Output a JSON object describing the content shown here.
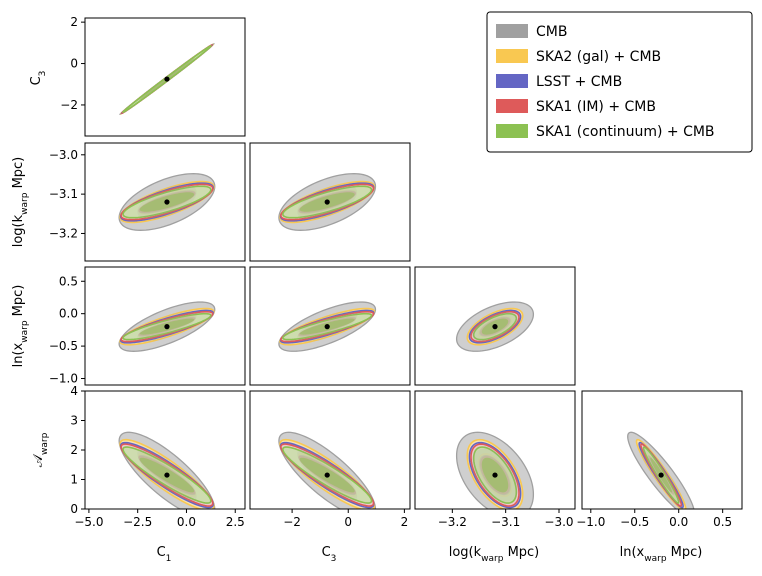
{
  "chart_data": {
    "type": "corner",
    "parameters": [
      "C_1",
      "C_3",
      "log(k_warp Mpc)",
      "ln(x_warp Mpc)",
      "A_warp"
    ],
    "param_labels": {
      "C1": "C₁",
      "C3": "C₃",
      "logk": "log(kwarp Mpc)",
      "lnx": "ln(xwarp Mpc)",
      "A": "𝒜warp"
    },
    "fiducial": {
      "C1": -1.0,
      "C3": -0.75,
      "logk": -3.12,
      "lnx": -0.2,
      "A": 1.15
    },
    "ticks": {
      "C1": [
        -5.0,
        -2.5,
        0.0,
        2.5
      ],
      "C1_labels": [
        "−5.0",
        "−2.5",
        "0.0",
        "2.5"
      ],
      "C3": [
        -2,
        0,
        2
      ],
      "C3_labels": [
        "−2",
        "0",
        "2"
      ],
      "logk": [
        -3.2,
        -3.1,
        -3.0
      ],
      "logk_labels": [
        "−3.2",
        "−3.1",
        "−3.0"
      ],
      "lnx": [
        -1.0,
        -0.5,
        0.0,
        0.5
      ],
      "lnx_labels": [
        "−1.0",
        "−0.5",
        "0.0",
        "0.5"
      ],
      "A": [
        0,
        1,
        2,
        3,
        4
      ],
      "A_labels": [
        "0",
        "1",
        "2",
        "3",
        "4"
      ]
    },
    "legend": [
      {
        "label": "CMB",
        "color": "#a0a0a0"
      },
      {
        "label": "SKA2 (gal) + CMB",
        "color": "#f9c851"
      },
      {
        "label": "LSST + CMB",
        "color": "#6466c4"
      },
      {
        "label": "SKA1 (IM) + CMB",
        "color": "#de5a5a"
      },
      {
        "label": "SKA1 (continuum) + CMB",
        "color": "#8cc152"
      }
    ],
    "legend_position": "top-right",
    "panels": [
      {
        "id": "C1-C3",
        "x": "C1",
        "y": "C3",
        "xlim": [
          -5.2,
          3.0
        ],
        "ylim": [
          -3.5,
          2.2
        ],
        "ellipses": [
          {
            "series": "CMB",
            "center": [
              -1.0,
              -0.75
            ],
            "sx": 2.4,
            "sy": 1.7,
            "rho": 0.999
          },
          {
            "series": "SKA2 (gal) + CMB",
            "center": [
              -1.0,
              -0.75
            ],
            "sx": 2.35,
            "sy": 1.67,
            "rho": 0.998
          },
          {
            "series": "LSST + CMB",
            "center": [
              -1.0,
              -0.75
            ],
            "sx": 2.32,
            "sy": 1.65,
            "rho": 0.998
          },
          {
            "series": "SKA1 (IM) + CMB",
            "center": [
              -1.0,
              -0.75
            ],
            "sx": 2.3,
            "sy": 1.64,
            "rho": 0.998
          },
          {
            "series": "SKA1 (continuum) + CMB",
            "center": [
              -1.0,
              -0.75
            ],
            "sx": 2.25,
            "sy": 1.6,
            "rho": 0.998
          }
        ]
      },
      {
        "id": "C1-logk",
        "x": "C1",
        "y": "logk",
        "xlim": [
          -5.2,
          3.0
        ],
        "ylim": [
          -3.27,
          -2.97
        ],
        "ellipses": [
          {
            "series": "CMB",
            "center": [
              -1.0,
              -3.12
            ],
            "sx": 2.45,
            "sy": 0.072,
            "rho": 0.55
          },
          {
            "series": "SKA2 (gal) + CMB",
            "center": [
              -1.0,
              -3.12
            ],
            "sx": 2.4,
            "sy": 0.052,
            "rho": 0.74
          },
          {
            "series": "LSST + CMB",
            "center": [
              -1.0,
              -3.12
            ],
            "sx": 2.37,
            "sy": 0.048,
            "rho": 0.76
          },
          {
            "series": "SKA1 (IM) + CMB",
            "center": [
              -1.0,
              -3.12
            ],
            "sx": 2.35,
            "sy": 0.045,
            "rho": 0.77
          },
          {
            "series": "SKA1 (continuum) + CMB",
            "center": [
              -1.0,
              -3.12
            ],
            "sx": 2.25,
            "sy": 0.04,
            "rho": 0.78
          }
        ]
      },
      {
        "id": "C3-logk",
        "x": "C3",
        "y": "logk",
        "xlim": [
          -3.5,
          2.2
        ],
        "ylim": [
          -3.27,
          -2.97
        ],
        "ellipses": [
          {
            "series": "CMB",
            "center": [
              -0.75,
              -3.12
            ],
            "sx": 1.72,
            "sy": 0.072,
            "rho": 0.55
          },
          {
            "series": "SKA2 (gal) + CMB",
            "center": [
              -0.75,
              -3.12
            ],
            "sx": 1.68,
            "sy": 0.052,
            "rho": 0.74
          },
          {
            "series": "LSST + CMB",
            "center": [
              -0.75,
              -3.12
            ],
            "sx": 1.66,
            "sy": 0.048,
            "rho": 0.76
          },
          {
            "series": "SKA1 (IM) + CMB",
            "center": [
              -0.75,
              -3.12
            ],
            "sx": 1.65,
            "sy": 0.045,
            "rho": 0.77
          },
          {
            "series": "SKA1 (continuum) + CMB",
            "center": [
              -0.75,
              -3.12
            ],
            "sx": 1.58,
            "sy": 0.04,
            "rho": 0.78
          }
        ]
      },
      {
        "id": "C1-lnx",
        "x": "C1",
        "y": "lnx",
        "xlim": [
          -5.2,
          3.0
        ],
        "ylim": [
          -1.1,
          0.72
        ],
        "ellipses": [
          {
            "series": "CMB",
            "center": [
              -1.0,
              -0.2
            ],
            "sx": 2.45,
            "sy": 0.38,
            "rho": 0.7
          },
          {
            "series": "SKA2 (gal) + CMB",
            "center": [
              -1.0,
              -0.2
            ],
            "sx": 2.4,
            "sy": 0.28,
            "rho": 0.82
          },
          {
            "series": "LSST + CMB",
            "center": [
              -1.0,
              -0.2
            ],
            "sx": 2.37,
            "sy": 0.25,
            "rho": 0.85
          },
          {
            "series": "SKA1 (IM) + CMB",
            "center": [
              -1.0,
              -0.2
            ],
            "sx": 2.35,
            "sy": 0.23,
            "rho": 0.86
          },
          {
            "series": "SKA1 (continuum) + CMB",
            "center": [
              -1.0,
              -0.2
            ],
            "sx": 2.25,
            "sy": 0.2,
            "rho": 0.87
          }
        ]
      },
      {
        "id": "C3-lnx",
        "x": "C3",
        "y": "lnx",
        "xlim": [
          -3.5,
          2.2
        ],
        "ylim": [
          -1.1,
          0.72
        ],
        "ellipses": [
          {
            "series": "CMB",
            "center": [
              -0.75,
              -0.2
            ],
            "sx": 1.72,
            "sy": 0.38,
            "rho": 0.7
          },
          {
            "series": "SKA2 (gal) + CMB",
            "center": [
              -0.75,
              -0.2
            ],
            "sx": 1.68,
            "sy": 0.28,
            "rho": 0.82
          },
          {
            "series": "LSST + CMB",
            "center": [
              -0.75,
              -0.2
            ],
            "sx": 1.66,
            "sy": 0.25,
            "rho": 0.85
          },
          {
            "series": "SKA1 (IM) + CMB",
            "center": [
              -0.75,
              -0.2
            ],
            "sx": 1.65,
            "sy": 0.23,
            "rho": 0.86
          },
          {
            "series": "SKA1 (continuum) + CMB",
            "center": [
              -0.75,
              -0.2
            ],
            "sx": 1.58,
            "sy": 0.2,
            "rho": 0.87
          }
        ]
      },
      {
        "id": "logk-lnx",
        "x": "logk",
        "y": "lnx",
        "xlim": [
          -3.27,
          -2.97
        ],
        "ylim": [
          -1.1,
          0.72
        ],
        "ellipses": [
          {
            "series": "CMB",
            "center": [
              -3.12,
              -0.2
            ],
            "sx": 0.072,
            "sy": 0.38,
            "rho": 0.5
          },
          {
            "series": "SKA2 (gal) + CMB",
            "center": [
              -3.12,
              -0.2
            ],
            "sx": 0.052,
            "sy": 0.28,
            "rho": 0.6
          },
          {
            "series": "LSST + CMB",
            "center": [
              -3.12,
              -0.2
            ],
            "sx": 0.048,
            "sy": 0.25,
            "rho": 0.62
          },
          {
            "series": "SKA1 (IM) + CMB",
            "center": [
              -3.12,
              -0.2
            ],
            "sx": 0.045,
            "sy": 0.23,
            "rho": 0.63
          },
          {
            "series": "SKA1 (continuum) + CMB",
            "center": [
              -3.12,
              -0.2
            ],
            "sx": 0.04,
            "sy": 0.2,
            "rho": 0.64
          }
        ]
      },
      {
        "id": "C1-A",
        "x": "C1",
        "y": "A",
        "xlim": [
          -5.2,
          3.0
        ],
        "ylim": [
          0.0,
          4.0
        ],
        "ellipses": [
          {
            "series": "CMB",
            "center": [
              -1.0,
              1.15
            ],
            "sx": 2.45,
            "sy": 1.45,
            "rho": -0.8
          },
          {
            "series": "SKA2 (gal) + CMB",
            "center": [
              -1.0,
              1.15
            ],
            "sx": 2.4,
            "sy": 1.2,
            "rho": -0.88
          },
          {
            "series": "LSST + CMB",
            "center": [
              -1.0,
              1.15
            ],
            "sx": 2.37,
            "sy": 1.1,
            "rho": -0.9
          },
          {
            "series": "SKA1 (IM) + CMB",
            "center": [
              -1.0,
              1.15
            ],
            "sx": 2.35,
            "sy": 1.05,
            "rho": -0.91
          },
          {
            "series": "SKA1 (continuum) + CMB",
            "center": [
              -1.0,
              1.15
            ],
            "sx": 2.25,
            "sy": 0.95,
            "rho": -0.92
          }
        ]
      },
      {
        "id": "C3-A",
        "x": "C3",
        "y": "A",
        "xlim": [
          -3.5,
          2.2
        ],
        "ylim": [
          0.0,
          4.0
        ],
        "ellipses": [
          {
            "series": "CMB",
            "center": [
              -0.75,
              1.15
            ],
            "sx": 1.72,
            "sy": 1.45,
            "rho": -0.8
          },
          {
            "series": "SKA2 (gal) + CMB",
            "center": [
              -0.75,
              1.15
            ],
            "sx": 1.68,
            "sy": 1.2,
            "rho": -0.88
          },
          {
            "series": "LSST + CMB",
            "center": [
              -0.75,
              1.15
            ],
            "sx": 1.66,
            "sy": 1.1,
            "rho": -0.9
          },
          {
            "series": "SKA1 (IM) + CMB",
            "center": [
              -0.75,
              1.15
            ],
            "sx": 1.65,
            "sy": 1.05,
            "rho": -0.91
          },
          {
            "series": "SKA1 (continuum) + CMB",
            "center": [
              -0.75,
              1.15
            ],
            "sx": 1.58,
            "sy": 0.95,
            "rho": -0.92
          }
        ]
      },
      {
        "id": "logk-A",
        "x": "logk",
        "y": "A",
        "xlim": [
          -3.27,
          -2.97
        ],
        "ylim": [
          0.0,
          4.0
        ],
        "ellipses": [
          {
            "series": "CMB",
            "center": [
              -3.12,
              1.15
            ],
            "sx": 0.072,
            "sy": 1.45,
            "rho": -0.45
          },
          {
            "series": "SKA2 (gal) + CMB",
            "center": [
              -3.12,
              1.15
            ],
            "sx": 0.052,
            "sy": 1.2,
            "rho": -0.55
          },
          {
            "series": "LSST + CMB",
            "center": [
              -3.12,
              1.15
            ],
            "sx": 0.048,
            "sy": 1.1,
            "rho": -0.57
          },
          {
            "series": "SKA1 (IM) + CMB",
            "center": [
              -3.12,
              1.15
            ],
            "sx": 0.045,
            "sy": 1.05,
            "rho": -0.58
          },
          {
            "series": "SKA1 (continuum) + CMB",
            "center": [
              -3.12,
              1.15
            ],
            "sx": 0.04,
            "sy": 0.95,
            "rho": -0.6
          }
        ]
      },
      {
        "id": "lnx-A",
        "x": "lnx",
        "y": "A",
        "xlim": [
          -1.1,
          0.72
        ],
        "ylim": [
          0.0,
          4.0
        ],
        "ellipses": [
          {
            "series": "CMB",
            "center": [
              -0.2,
              1.15
            ],
            "sx": 0.38,
            "sy": 1.45,
            "rho": -0.9
          },
          {
            "series": "SKA2 (gal) + CMB",
            "center": [
              -0.2,
              1.15
            ],
            "sx": 0.28,
            "sy": 1.2,
            "rho": -0.95
          },
          {
            "series": "LSST + CMB",
            "center": [
              -0.2,
              1.15
            ],
            "sx": 0.25,
            "sy": 1.1,
            "rho": -0.96
          },
          {
            "series": "SKA1 (IM) + CMB",
            "center": [
              -0.2,
              1.15
            ],
            "sx": 0.23,
            "sy": 1.05,
            "rho": -0.965
          },
          {
            "series": "SKA1 (continuum) + CMB",
            "center": [
              -0.2,
              1.15
            ],
            "sx": 0.2,
            "sy": 0.95,
            "rho": -0.97
          }
        ]
      }
    ]
  }
}
